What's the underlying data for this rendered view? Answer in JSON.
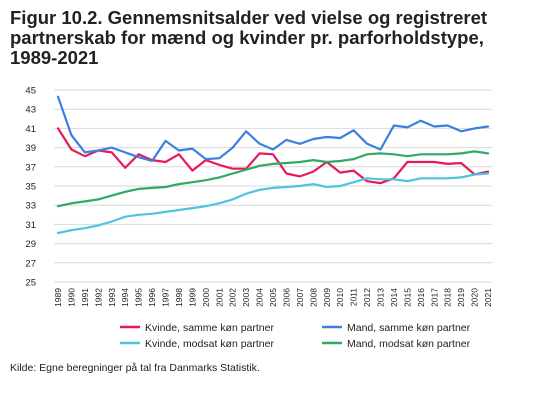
{
  "title": "Figur 10.2. Gennemsnitsalder ved vielse og registreret partnerskab for mænd og kvinder pr. parforholdstype, 1989-2021",
  "source": "Kilde: Egne beregninger på tal fra Danmarks Statistik.",
  "chart_data": {
    "type": "line",
    "title": "Figur 10.2. Gennemsnitsalder ved vielse og registreret partnerskab for mænd og kvinder pr. parforholdstype, 1989-2021",
    "xlabel": "",
    "ylabel": "",
    "ylim": [
      25,
      45
    ],
    "yticks": [
      25,
      27,
      29,
      31,
      33,
      35,
      37,
      39,
      41,
      43,
      45
    ],
    "grid": "horizontal",
    "legend_position": "bottom",
    "x": [
      "1989",
      "1990",
      "1991",
      "1992",
      "1993",
      "1994",
      "1995",
      "1996",
      "1997",
      "1998",
      "1999",
      "2000",
      "2001",
      "2002",
      "2003",
      "2004",
      "2005",
      "2006",
      "2007",
      "2008",
      "2009",
      "2010",
      "2011",
      "2012",
      "2013",
      "2014",
      "2015",
      "2016",
      "2017",
      "2018",
      "2019",
      "2020",
      "2021"
    ],
    "series": [
      {
        "name": "Kvinde, samme køn partner",
        "color": "#e8195a",
        "values": [
          41.0,
          38.8,
          38.1,
          38.7,
          38.5,
          36.9,
          38.3,
          37.7,
          37.5,
          38.3,
          36.6,
          37.7,
          37.2,
          36.8,
          36.8,
          38.4,
          38.3,
          36.3,
          36.0,
          36.5,
          37.5,
          36.4,
          36.6,
          35.5,
          35.3,
          35.8,
          37.5,
          37.5,
          37.5,
          37.3,
          37.4,
          36.2,
          36.5
        ]
      },
      {
        "name": "Mand, samme køn partner",
        "color": "#3b7fe0",
        "values": [
          44.3,
          40.3,
          38.5,
          38.7,
          39.0,
          38.5,
          38.0,
          37.6,
          39.7,
          38.7,
          38.9,
          37.8,
          37.9,
          39.0,
          40.7,
          39.4,
          38.8,
          39.8,
          39.4,
          39.9,
          40.1,
          40.0,
          40.8,
          39.4,
          38.8,
          41.3,
          41.1,
          41.8,
          41.2,
          41.3,
          40.7,
          41.0,
          41.2
        ]
      },
      {
        "name": "Kvinde, modsat køn partner",
        "color": "#4ec3e0",
        "values": [
          30.1,
          30.4,
          30.6,
          30.9,
          31.3,
          31.8,
          32.0,
          32.1,
          32.3,
          32.5,
          32.7,
          32.9,
          33.2,
          33.6,
          34.2,
          34.6,
          34.8,
          34.9,
          35.0,
          35.2,
          34.9,
          35.0,
          35.4,
          35.8,
          35.7,
          35.7,
          35.5,
          35.8,
          35.8,
          35.8,
          35.9,
          36.2,
          36.3
        ]
      },
      {
        "name": "Mand, modsat køn partner",
        "color": "#2bab67",
        "values": [
          32.9,
          33.2,
          33.4,
          33.6,
          34.0,
          34.4,
          34.7,
          34.8,
          34.9,
          35.2,
          35.4,
          35.6,
          35.9,
          36.3,
          36.7,
          37.1,
          37.3,
          37.4,
          37.5,
          37.7,
          37.5,
          37.6,
          37.8,
          38.3,
          38.4,
          38.3,
          38.1,
          38.3,
          38.3,
          38.3,
          38.4,
          38.6,
          38.4
        ]
      }
    ]
  }
}
